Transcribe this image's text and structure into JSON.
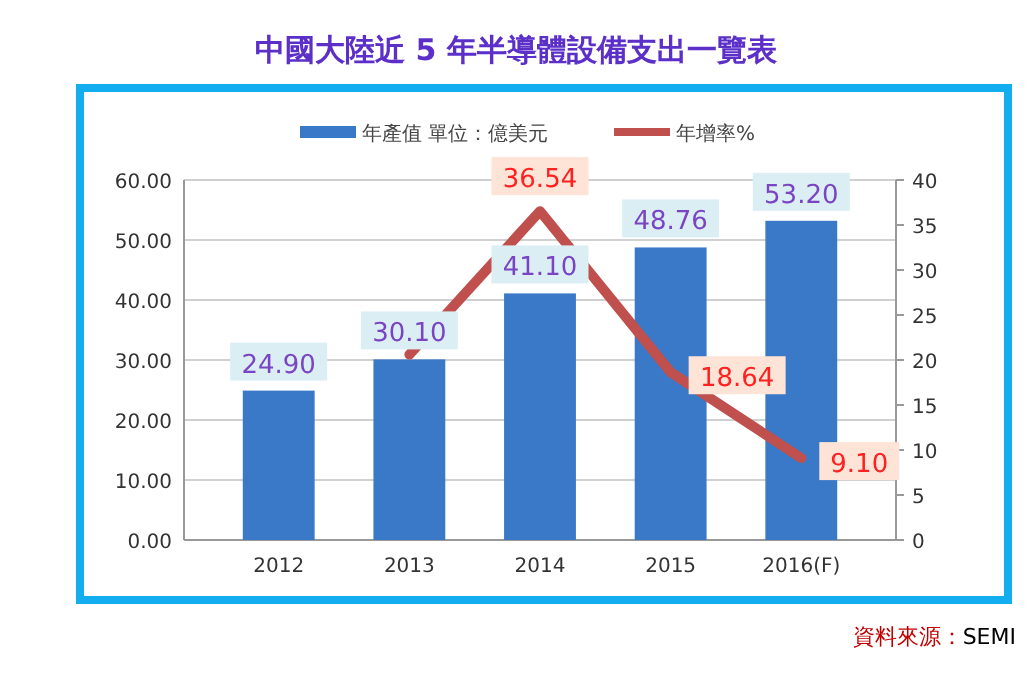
{
  "chart_data": {
    "type": "bar",
    "title": "中國大陸近 5 年半導體設備支出一覽表",
    "categories": [
      "2012",
      "2013",
      "2014",
      "2015",
      "2016(F)"
    ],
    "series": [
      {
        "name": "年產值 單位：億美元",
        "color": "#3a78c8",
        "values": [
          24.9,
          30.1,
          41.1,
          48.76,
          53.2
        ],
        "value_labels": [
          "24.90",
          "30.10",
          "41.10",
          "48.76",
          "53.20"
        ]
      },
      {
        "name": "年增率%",
        "type": "line",
        "axis": "y2",
        "color": "#c0504d",
        "values": [
          null,
          20.6,
          36.54,
          18.64,
          9.1
        ],
        "value_labels": [
          null,
          null,
          "36.54",
          "18.64",
          "9.10"
        ]
      }
    ],
    "ylim": [
      0,
      60
    ],
    "yticks": [
      {
        "value": 0,
        "label": "0.00"
      },
      {
        "value": 10,
        "label": "10.00"
      },
      {
        "value": 20,
        "label": "20.00"
      },
      {
        "value": 30,
        "label": "30.00"
      },
      {
        "value": 40,
        "label": "40.00"
      },
      {
        "value": 50,
        "label": "50.00"
      },
      {
        "value": 60,
        "label": "60.00"
      }
    ],
    "y2lim": [
      0,
      40
    ],
    "y2ticks": [
      0,
      5,
      10,
      15,
      20,
      25,
      30,
      35,
      40
    ],
    "grid": "y",
    "legend": "top",
    "marker": "none",
    "line_style": "solid",
    "annotations": [
      "資料來源：SEMI"
    ]
  }
}
